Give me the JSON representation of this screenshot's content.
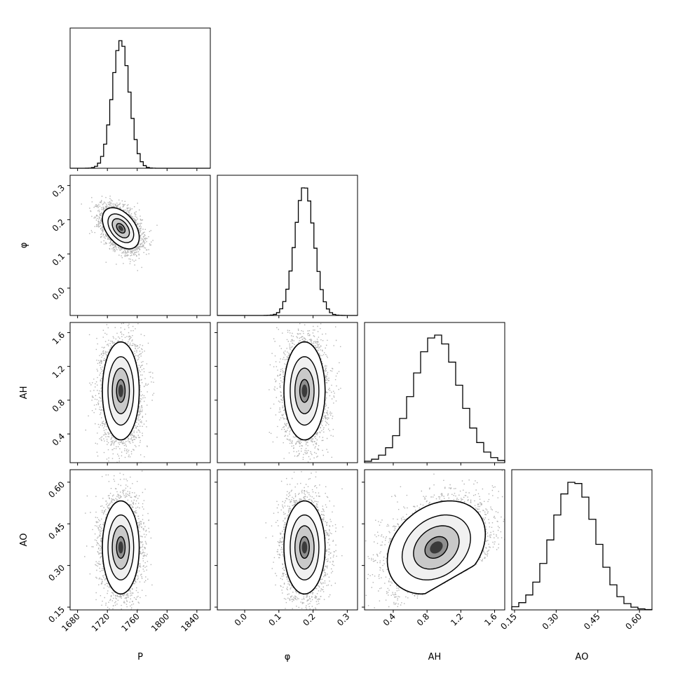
{
  "figure": {
    "type": "corner_plot",
    "params": [
      "P",
      "φ",
      "AH",
      "AO"
    ],
    "axis_labels": [
      "P",
      "φ",
      "AH",
      "AO"
    ]
  },
  "chart_data": {
    "type": "corner",
    "parameters": [
      {
        "name": "P",
        "label": "P",
        "range": [
          1670,
          1858
        ],
        "ticks": [
          1680,
          1720,
          1760,
          1800,
          1840
        ],
        "tick_labels": [
          "1680",
          "1720",
          "1760",
          "1800",
          "1840"
        ],
        "mean": 1738,
        "sd": 11.5,
        "hist_bin_width": 4.1
      },
      {
        "name": "phi",
        "label": "φ",
        "range": [
          -0.08,
          0.33
        ],
        "ticks": [
          0.0,
          0.1,
          0.2,
          0.3
        ],
        "tick_labels": [
          "0.0",
          "0.1",
          "0.2",
          "0.3"
        ],
        "mean": 0.175,
        "sd": 0.028,
        "hist_bin_width": 0.0092
      },
      {
        "name": "AH",
        "label": "AH",
        "range": [
          0.06,
          1.72
        ],
        "ticks": [
          0.4,
          0.8,
          1.2,
          1.6
        ],
        "tick_labels": [
          "0.4",
          "0.8",
          "1.2",
          "1.6"
        ],
        "mean": 0.91,
        "sd": 0.27,
        "hist_bin_width": 0.083
      },
      {
        "name": "AO",
        "label": "AO",
        "range": [
          0.14,
          0.645
        ],
        "ticks": [
          0.15,
          0.3,
          0.45,
          0.6
        ],
        "tick_labels": [
          "0.15",
          "0.30",
          "0.45",
          "0.60"
        ],
        "mean": 0.365,
        "sd": 0.078,
        "hist_bin_width": 0.025
      }
    ],
    "correlations": {
      "P-phi": -0.45,
      "P-AH": 0.0,
      "P-AO": 0.0,
      "phi-AH": 0.0,
      "phi-AO": 0.0,
      "AH-AO": 0.28
    },
    "truncation": {
      "pair": "AH-AO",
      "note": "samples absent below the line AO = 0.15 + 0.175*(AH - 0.5)"
    },
    "contour_levels": [
      0.5,
      1.0,
      1.5,
      2.0
    ],
    "colors": {
      "ink": "#000000",
      "background": "#ffffff"
    }
  }
}
